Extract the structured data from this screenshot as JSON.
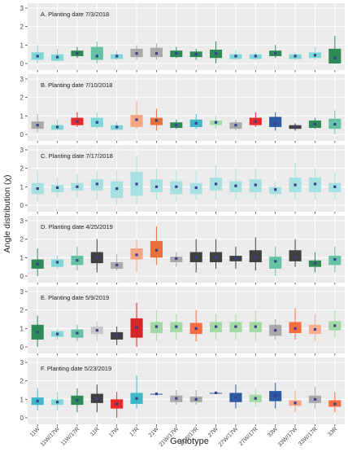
{
  "figure": {
    "xlabel": "Genotype",
    "ylabel": "Angle distribution (χ)"
  },
  "chart_data": {
    "type": "box",
    "categories": [
      "11W",
      "11W/17W",
      "11W/17R",
      "11R",
      "17W",
      "17R",
      "21W",
      "21W/17W",
      "21W/17R",
      "27W",
      "27W/17W",
      "27W/17R",
      "33W",
      "33W/17W",
      "33W/17R",
      "33R"
    ],
    "category_colors": [
      "#2e8b57",
      "#7fd6d6",
      "#2e8b57",
      "#66c2a5",
      "#7fd6d6",
      "#a9a9a9",
      "#a9a9a9",
      "#2e8b57",
      "#2e8b57",
      "#2e8b57",
      "#7fd6d6",
      "#7fd6d6",
      "#2e8b57",
      "#7fd6d6",
      "#7fd6d6",
      "#2e8b57"
    ],
    "ylim": [
      0,
      3
    ],
    "yticks": [
      0,
      1,
      2,
      3
    ],
    "grid": true,
    "panels": [
      {
        "title": "A. Planting date 7/3/2018",
        "boxes": [
          {
            "min": 0.0,
            "q1": 0.2,
            "median": 0.4,
            "q3": 0.6,
            "max": 1.0,
            "color": "#7fd6d6"
          },
          {
            "min": 0.1,
            "q1": 0.15,
            "median": 0.35,
            "q3": 0.5,
            "max": 0.8,
            "color": "#7fd6d6"
          },
          {
            "min": 0.3,
            "q1": 0.4,
            "median": 0.55,
            "q3": 0.7,
            "max": 0.9,
            "color": "#2e8b57"
          },
          {
            "min": 0.0,
            "q1": 0.2,
            "median": 0.4,
            "q3": 0.9,
            "max": 1.2,
            "color": "#66c2a5"
          },
          {
            "min": 0.2,
            "q1": 0.25,
            "median": 0.4,
            "q3": 0.5,
            "max": 0.7,
            "color": "#7fd6d6"
          },
          {
            "min": 0.2,
            "q1": 0.35,
            "median": 0.55,
            "q3": 0.8,
            "max": 1.0,
            "color": "#a9a9a9"
          },
          {
            "min": 0.2,
            "q1": 0.35,
            "median": 0.55,
            "q3": 0.85,
            "max": 1.1,
            "color": "#a9a9a9"
          },
          {
            "min": 0.3,
            "q1": 0.35,
            "median": 0.55,
            "q3": 0.7,
            "max": 0.9,
            "color": "#2e8b57"
          },
          {
            "min": 0.2,
            "q1": 0.35,
            "median": 0.5,
            "q3": 0.65,
            "max": 0.8,
            "color": "#2e8b57"
          },
          {
            "min": 0.0,
            "q1": 0.3,
            "median": 0.55,
            "q3": 0.75,
            "max": 1.2,
            "color": "#2e8b57"
          },
          {
            "min": 0.2,
            "q1": 0.25,
            "median": 0.4,
            "q3": 0.5,
            "max": 0.7,
            "color": "#7fd6d6"
          },
          {
            "min": 0.2,
            "q1": 0.25,
            "median": 0.4,
            "q3": 0.5,
            "max": 0.6,
            "color": "#7fd6d6"
          },
          {
            "min": 0.3,
            "q1": 0.4,
            "median": 0.55,
            "q3": 0.7,
            "max": 1.0,
            "color": "#2e8b57"
          },
          {
            "min": 0.2,
            "q1": 0.25,
            "median": 0.4,
            "q3": 0.5,
            "max": 0.6,
            "color": "#7fd6d6"
          },
          {
            "min": 0.2,
            "q1": 0.3,
            "median": 0.45,
            "q3": 0.6,
            "max": 0.9,
            "color": "#7fd6d6"
          },
          {
            "min": 0.0,
            "q1": 0.0,
            "median": 0.3,
            "q3": 0.8,
            "max": 1.5,
            "color": "#2e8b57"
          }
        ]
      },
      {
        "title": "B. Planting date 7/10/2018",
        "boxes": [
          {
            "min": 0.1,
            "q1": 0.3,
            "median": 0.5,
            "q3": 0.7,
            "max": 1.1,
            "color": "#a9a9a9"
          },
          {
            "min": 0.2,
            "q1": 0.25,
            "median": 0.4,
            "q3": 0.5,
            "max": 0.8,
            "color": "#7fd6d6"
          },
          {
            "min": 0.4,
            "q1": 0.5,
            "median": 0.7,
            "q3": 0.9,
            "max": 1.2,
            "color": "#e8282b"
          },
          {
            "min": 0.3,
            "q1": 0.4,
            "median": 0.65,
            "q3": 0.9,
            "max": 1.2,
            "color": "#7fd6d6"
          },
          {
            "min": 0.2,
            "q1": 0.25,
            "median": 0.4,
            "q3": 0.5,
            "max": 0.7,
            "color": "#7fd6d6"
          },
          {
            "min": 0.3,
            "q1": 0.4,
            "median": 0.8,
            "q3": 1.05,
            "max": 1.8,
            "color": "#f4a582"
          },
          {
            "min": 0.2,
            "q1": 0.5,
            "median": 0.75,
            "q3": 0.9,
            "max": 1.4,
            "color": "#e8703a"
          },
          {
            "min": 0.3,
            "q1": 0.35,
            "median": 0.5,
            "q3": 0.65,
            "max": 0.8,
            "color": "#2e8b57"
          },
          {
            "min": 0.3,
            "q1": 0.4,
            "median": 0.6,
            "q3": 0.8,
            "max": 1.1,
            "color": "#3fb7c9"
          },
          {
            "min": 0.3,
            "q1": 0.5,
            "median": 0.65,
            "q3": 0.75,
            "max": 1.0,
            "color": "#a3d9a5"
          },
          {
            "min": 0.2,
            "q1": 0.3,
            "median": 0.5,
            "q3": 0.65,
            "max": 0.8,
            "color": "#a9a9a9"
          },
          {
            "min": 0.4,
            "q1": 0.5,
            "median": 0.7,
            "q3": 0.9,
            "max": 1.2,
            "color": "#e8282b"
          },
          {
            "min": 0.2,
            "q1": 0.4,
            "median": 0.6,
            "q3": 0.95,
            "max": 1.2,
            "color": "#2c5aa0"
          },
          {
            "min": 0.2,
            "q1": 0.3,
            "median": 0.4,
            "q3": 0.5,
            "max": 0.6,
            "color": "#404040"
          },
          {
            "min": 0.3,
            "q1": 0.35,
            "median": 0.55,
            "q3": 0.75,
            "max": 0.9,
            "color": "#2e8b57"
          },
          {
            "min": 0.0,
            "q1": 0.3,
            "median": 0.55,
            "q3": 0.85,
            "max": 1.3,
            "color": "#66c2a5"
          }
        ]
      },
      {
        "title": "C. Planting date 7/17/2018",
        "boxes": [
          {
            "min": 0.2,
            "q1": 0.6,
            "median": 0.9,
            "q3": 1.2,
            "max": 1.9,
            "color": "#a7e0e0"
          },
          {
            "min": 0.4,
            "q1": 0.7,
            "median": 0.95,
            "q3": 1.1,
            "max": 1.5,
            "color": "#a7e0e0"
          },
          {
            "min": 0.4,
            "q1": 0.8,
            "median": 1.0,
            "q3": 1.2,
            "max": 1.7,
            "color": "#a7e0e0"
          },
          {
            "min": 0.3,
            "q1": 0.8,
            "median": 1.15,
            "q3": 1.4,
            "max": 1.9,
            "color": "#a7e0e0"
          },
          {
            "min": 0.0,
            "q1": 0.4,
            "median": 0.9,
            "q3": 1.3,
            "max": 1.9,
            "color": "#a7e0e0"
          },
          {
            "min": 0.0,
            "q1": 0.5,
            "median": 1.15,
            "q3": 1.8,
            "max": 2.7,
            "color": "#a7e0e0"
          },
          {
            "min": 0.3,
            "q1": 0.7,
            "median": 1.0,
            "q3": 1.4,
            "max": 2.0,
            "color": "#a7e0e0"
          },
          {
            "min": 0.2,
            "q1": 0.6,
            "median": 1.0,
            "q3": 1.3,
            "max": 1.9,
            "color": "#a7e0e0"
          },
          {
            "min": 0.3,
            "q1": 0.6,
            "median": 0.95,
            "q3": 1.2,
            "max": 1.9,
            "color": "#a7e0e0"
          },
          {
            "min": 0.3,
            "q1": 0.8,
            "median": 1.15,
            "q3": 1.5,
            "max": 2.2,
            "color": "#a7e0e0"
          },
          {
            "min": 0.3,
            "q1": 0.7,
            "median": 1.05,
            "q3": 1.3,
            "max": 2.0,
            "color": "#a7e0e0"
          },
          {
            "min": 0.3,
            "q1": 0.7,
            "median": 1.1,
            "q3": 1.4,
            "max": 2.0,
            "color": "#a7e0e0"
          },
          {
            "min": 0.4,
            "q1": 0.6,
            "median": 0.85,
            "q3": 1.0,
            "max": 1.3,
            "color": "#a7e0e0"
          },
          {
            "min": 0.3,
            "q1": 0.7,
            "median": 1.1,
            "q3": 1.5,
            "max": 2.3,
            "color": "#a7e0e0"
          },
          {
            "min": 0.3,
            "q1": 0.7,
            "median": 1.15,
            "q3": 1.5,
            "max": 2.0,
            "color": "#a7e0e0"
          },
          {
            "min": 0.3,
            "q1": 0.7,
            "median": 1.0,
            "q3": 1.2,
            "max": 1.8,
            "color": "#a7e0e0"
          }
        ]
      },
      {
        "title": "D. Planting date 4/25/2019",
        "boxes": [
          {
            "min": 0.0,
            "q1": 0.4,
            "median": 0.65,
            "q3": 0.9,
            "max": 1.5,
            "color": "#2e8b57"
          },
          {
            "min": 0.4,
            "q1": 0.5,
            "median": 0.75,
            "q3": 0.9,
            "max": 1.1,
            "color": "#7fd6d6"
          },
          {
            "min": 0.3,
            "q1": 0.6,
            "median": 0.85,
            "q3": 1.1,
            "max": 1.6,
            "color": "#66c2a5"
          },
          {
            "min": 0.2,
            "q1": 0.7,
            "median": 1.0,
            "q3": 1.3,
            "max": 2.0,
            "color": "#404040"
          },
          {
            "min": 0.3,
            "q1": 0.4,
            "median": 0.6,
            "q3": 0.75,
            "max": 1.2,
            "color": "#a9a9a9"
          },
          {
            "min": 0.2,
            "q1": 0.9,
            "median": 1.15,
            "q3": 1.5,
            "max": 2.0,
            "color": "#f4a582"
          },
          {
            "min": 0.6,
            "q1": 1.0,
            "median": 1.4,
            "q3": 1.9,
            "max": 2.7,
            "color": "#e8703a"
          },
          {
            "min": 0.5,
            "q1": 0.75,
            "median": 0.95,
            "q3": 1.05,
            "max": 1.3,
            "color": "#a9a9a9"
          },
          {
            "min": 0.2,
            "q1": 0.75,
            "median": 1.0,
            "q3": 1.3,
            "max": 2.0,
            "color": "#404040"
          },
          {
            "min": 0.4,
            "q1": 0.75,
            "median": 1.0,
            "q3": 1.3,
            "max": 2.0,
            "color": "#404040"
          },
          {
            "min": 0.4,
            "q1": 0.8,
            "median": 0.95,
            "q3": 1.1,
            "max": 1.6,
            "color": "#404040"
          },
          {
            "min": 0.3,
            "q1": 0.75,
            "median": 1.0,
            "q3": 1.4,
            "max": 2.1,
            "color": "#404040"
          },
          {
            "min": 0.0,
            "q1": 0.4,
            "median": 0.8,
            "q3": 1.05,
            "max": 1.6,
            "color": "#66c2a5"
          },
          {
            "min": 0.5,
            "q1": 0.8,
            "median": 1.0,
            "q3": 1.4,
            "max": 2.0,
            "color": "#404040"
          },
          {
            "min": 0.2,
            "q1": 0.5,
            "median": 0.7,
            "q3": 0.85,
            "max": 1.3,
            "color": "#2e8b57"
          },
          {
            "min": 0.2,
            "q1": 0.6,
            "median": 0.9,
            "q3": 1.1,
            "max": 1.6,
            "color": "#66c2a5"
          }
        ]
      },
      {
        "title": "E. Planting date 5/9/2019",
        "boxes": [
          {
            "min": 0.0,
            "q1": 0.4,
            "median": 0.8,
            "q3": 1.2,
            "max": 1.7,
            "color": "#2e8b57"
          },
          {
            "min": 0.4,
            "q1": 0.55,
            "median": 0.7,
            "q3": 0.85,
            "max": 1.0,
            "color": "#7fd6d6"
          },
          {
            "min": 0.3,
            "q1": 0.5,
            "median": 0.75,
            "q3": 0.95,
            "max": 1.2,
            "color": "#66c2a5"
          },
          {
            "min": 0.3,
            "q1": 0.7,
            "median": 0.9,
            "q3": 1.1,
            "max": 1.4,
            "color": "#c7c7c7"
          },
          {
            "min": 0.1,
            "q1": 0.4,
            "median": 0.65,
            "q3": 0.8,
            "max": 1.1,
            "color": "#404040"
          },
          {
            "min": 0.0,
            "q1": 0.5,
            "median": 1.05,
            "q3": 1.55,
            "max": 2.4,
            "color": "#d62728"
          },
          {
            "min": 0.3,
            "q1": 0.75,
            "median": 1.1,
            "q3": 1.35,
            "max": 2.0,
            "color": "#a3d9a5"
          },
          {
            "min": 0.4,
            "q1": 0.8,
            "median": 1.1,
            "q3": 1.35,
            "max": 1.8,
            "color": "#a3d9a5"
          },
          {
            "min": 0.3,
            "q1": 0.7,
            "median": 1.0,
            "q3": 1.3,
            "max": 2.0,
            "color": "#f46d43"
          },
          {
            "min": 0.4,
            "q1": 0.8,
            "median": 1.1,
            "q3": 1.35,
            "max": 1.8,
            "color": "#a3d9a5"
          },
          {
            "min": 0.4,
            "q1": 0.8,
            "median": 1.1,
            "q3": 1.35,
            "max": 1.8,
            "color": "#a3d9a5"
          },
          {
            "min": 0.3,
            "q1": 0.8,
            "median": 1.1,
            "q3": 1.35,
            "max": 2.0,
            "color": "#a3d9a5"
          },
          {
            "min": 0.4,
            "q1": 0.6,
            "median": 0.9,
            "q3": 1.2,
            "max": 1.5,
            "color": "#a9a9a9"
          },
          {
            "min": 0.4,
            "q1": 0.75,
            "median": 1.0,
            "q3": 1.35,
            "max": 2.1,
            "color": "#f46d43"
          },
          {
            "min": 0.3,
            "q1": 0.7,
            "median": 0.95,
            "q3": 1.2,
            "max": 1.8,
            "color": "#fdae8f"
          },
          {
            "min": 0.5,
            "q1": 0.9,
            "median": 1.15,
            "q3": 1.4,
            "max": 2.0,
            "color": "#a3d9a5"
          }
        ]
      },
      {
        "title": "F. Planting date 5/23/2019",
        "boxes": [
          {
            "min": 0.4,
            "q1": 0.7,
            "median": 0.9,
            "q3": 1.1,
            "max": 1.6,
            "color": "#3fb7c9"
          },
          {
            "min": 0.4,
            "q1": 0.7,
            "median": 0.85,
            "q3": 1.0,
            "max": 1.4,
            "color": "#7fd6d6"
          },
          {
            "min": 0.3,
            "q1": 0.7,
            "median": 0.95,
            "q3": 1.2,
            "max": 1.6,
            "color": "#2e8b57"
          },
          {
            "min": 0.3,
            "q1": 0.8,
            "median": 1.05,
            "q3": 1.3,
            "max": 1.8,
            "color": "#404040"
          },
          {
            "min": 0.0,
            "q1": 0.5,
            "median": 0.75,
            "q3": 1.0,
            "max": 1.4,
            "color": "#e8282b"
          },
          {
            "min": 0.5,
            "q1": 0.75,
            "median": 1.05,
            "q3": 1.35,
            "max": 2.3,
            "color": "#3fb7c9"
          },
          {
            "min": 1.3,
            "q1": 1.3,
            "median": 1.3,
            "q3": 1.3,
            "max": 1.3,
            "color": "#2c5aa0"
          },
          {
            "min": 0.7,
            "q1": 0.85,
            "median": 1.05,
            "q3": 1.2,
            "max": 1.5,
            "color": "#a9a9a9"
          },
          {
            "min": 0.7,
            "q1": 0.85,
            "median": 1.0,
            "q3": 1.15,
            "max": 1.5,
            "color": "#a9a9a9"
          },
          {
            "min": 1.35,
            "q1": 1.35,
            "median": 1.35,
            "q3": 1.35,
            "max": 1.35,
            "color": "#2c5aa0"
          },
          {
            "min": 0.5,
            "q1": 0.85,
            "median": 1.1,
            "q3": 1.35,
            "max": 1.8,
            "color": "#2c5aa0"
          },
          {
            "min": 0.6,
            "q1": 0.85,
            "median": 1.05,
            "q3": 1.25,
            "max": 1.6,
            "color": "#a3d9a5"
          },
          {
            "min": 0.5,
            "q1": 0.9,
            "median": 1.2,
            "q3": 1.45,
            "max": 1.9,
            "color": "#2c5aa0"
          },
          {
            "min": 0.3,
            "q1": 0.65,
            "median": 0.8,
            "q3": 0.95,
            "max": 1.5,
            "color": "#f4a582"
          },
          {
            "min": 0.5,
            "q1": 0.8,
            "median": 1.0,
            "q3": 1.2,
            "max": 1.7,
            "color": "#a9a9a9"
          },
          {
            "min": 0.3,
            "q1": 0.6,
            "median": 0.75,
            "q3": 0.95,
            "max": 1.4,
            "color": "#f46d43"
          }
        ]
      }
    ]
  }
}
